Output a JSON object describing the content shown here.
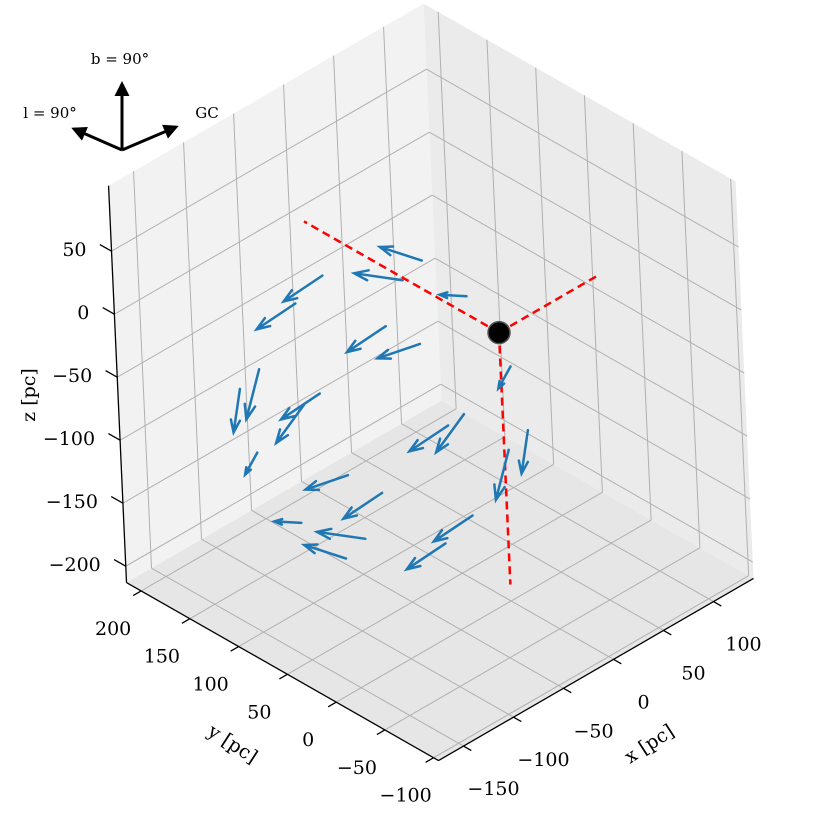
{
  "chart_data": {
    "type": "quiver3d",
    "xlabel": "x [pc]",
    "ylabel": "y [pc]",
    "zlabel": "z [pc]",
    "xlim": [
      -175,
      140
    ],
    "ylim": [
      -105,
      215
    ],
    "zlim": [
      -213,
      102
    ],
    "xticks": [
      {
        "value": -150,
        "label": "−150"
      },
      {
        "value": -100,
        "label": "−100"
      },
      {
        "value": -50,
        "label": "−50"
      },
      0,
      50,
      100
    ],
    "yticks": [
      {
        "value": -100,
        "label": "−100"
      },
      {
        "value": -50,
        "label": "−50"
      },
      0,
      50,
      100,
      150,
      200
    ],
    "zticks": [
      {
        "value": -200,
        "label": "−200"
      },
      {
        "value": -150,
        "label": "−150"
      },
      {
        "value": -100,
        "label": "−100"
      },
      {
        "value": -50,
        "label": "−50"
      },
      0,
      50
    ],
    "grid": true,
    "color": "#1f77b4",
    "arrows": {
      "x": [
        34.4,
        -2.1,
        -47.6,
        -75.6,
        -69.6,
        -33.1,
        12.4,
        40.4,
        13.5,
        -38.1,
        -102.4,
        -142.1,
        -133.5,
        -81.9,
        -17.6,
        22.1,
        -50.4,
        -86.9,
        -132.4,
        -160.4,
        -154.4,
        -117.9,
        -72.4,
        -44.4
      ],
      "y": [
        69.6,
        75.6,
        47.6,
        2.1,
        -34.4,
        -40.4,
        -12.4,
        33.1,
        133.5,
        142.1,
        102.4,
        38.1,
        -13.5,
        -22.1,
        17.6,
        81.9,
        154.4,
        160.4,
        132.4,
        86.9,
        50.4,
        44.4,
        72.4,
        117.9
      ],
      "z": [
        -17.6,
        24.8,
        42.4,
        24.8,
        -17.6,
        -60,
        -77.6,
        -60,
        -60,
        0,
        24.9,
        0,
        -60,
        -120,
        -144.9,
        -120,
        -102.4,
        -60,
        -42.4,
        -60,
        -102.4,
        -144.8,
        -162.4,
        -144.8
      ],
      "u": [
        3.2,
        -9.0,
        -24.3,
        -33.7,
        -31.7,
        -19.5,
        -4.2,
        5.2,
        -20.2,
        -20.2,
        -20.2,
        -20.2,
        -20.2,
        -20.2,
        -20.2,
        -20.2,
        -31.7,
        -19.5,
        -4.2,
        5.2,
        3.2,
        -9.0,
        -24.3,
        -33.7
      ],
      "v": [
        31.7,
        33.7,
        24.3,
        9.0,
        -3.2,
        -5.2,
        4.2,
        19.5,
        20.2,
        20.2,
        20.2,
        20.2,
        20.2,
        20.2,
        20.2,
        20.2,
        -3.2,
        -5.2,
        4.2,
        19.5,
        31.7,
        33.7,
        24.3,
        9.0
      ],
      "w": [
        -14.3,
        0,
        5.9,
        0,
        -14.3,
        -28.5,
        -34.4,
        -28.5,
        -20.2,
        -20.2,
        -20.2,
        -20.2,
        -20.2,
        -20.2,
        -20.2,
        -20.2,
        -14.3,
        -28.5,
        -34.4,
        -28.5,
        -14.3,
        0,
        5.9,
        0
      ]
    },
    "reference_lines": {
      "color": "#ff0000",
      "segments": [
        {
          "x": [
            0,
            100
          ],
          "y": [
            0,
            0
          ],
          "z": [
            0,
            0
          ]
        },
        {
          "x": [
            0,
            0
          ],
          "y": [
            0,
            200
          ],
          "z": [
            0,
            0
          ]
        },
        {
          "x": [
            0,
            0
          ],
          "y": [
            0,
            0
          ],
          "z": [
            0,
            -200
          ]
        }
      ]
    },
    "marker": {
      "x": 0,
      "y": 0,
      "z": 0,
      "color": "#000000"
    }
  },
  "orientation": {
    "up": "b = 90°",
    "left": "l = 90°",
    "right": "GC"
  }
}
